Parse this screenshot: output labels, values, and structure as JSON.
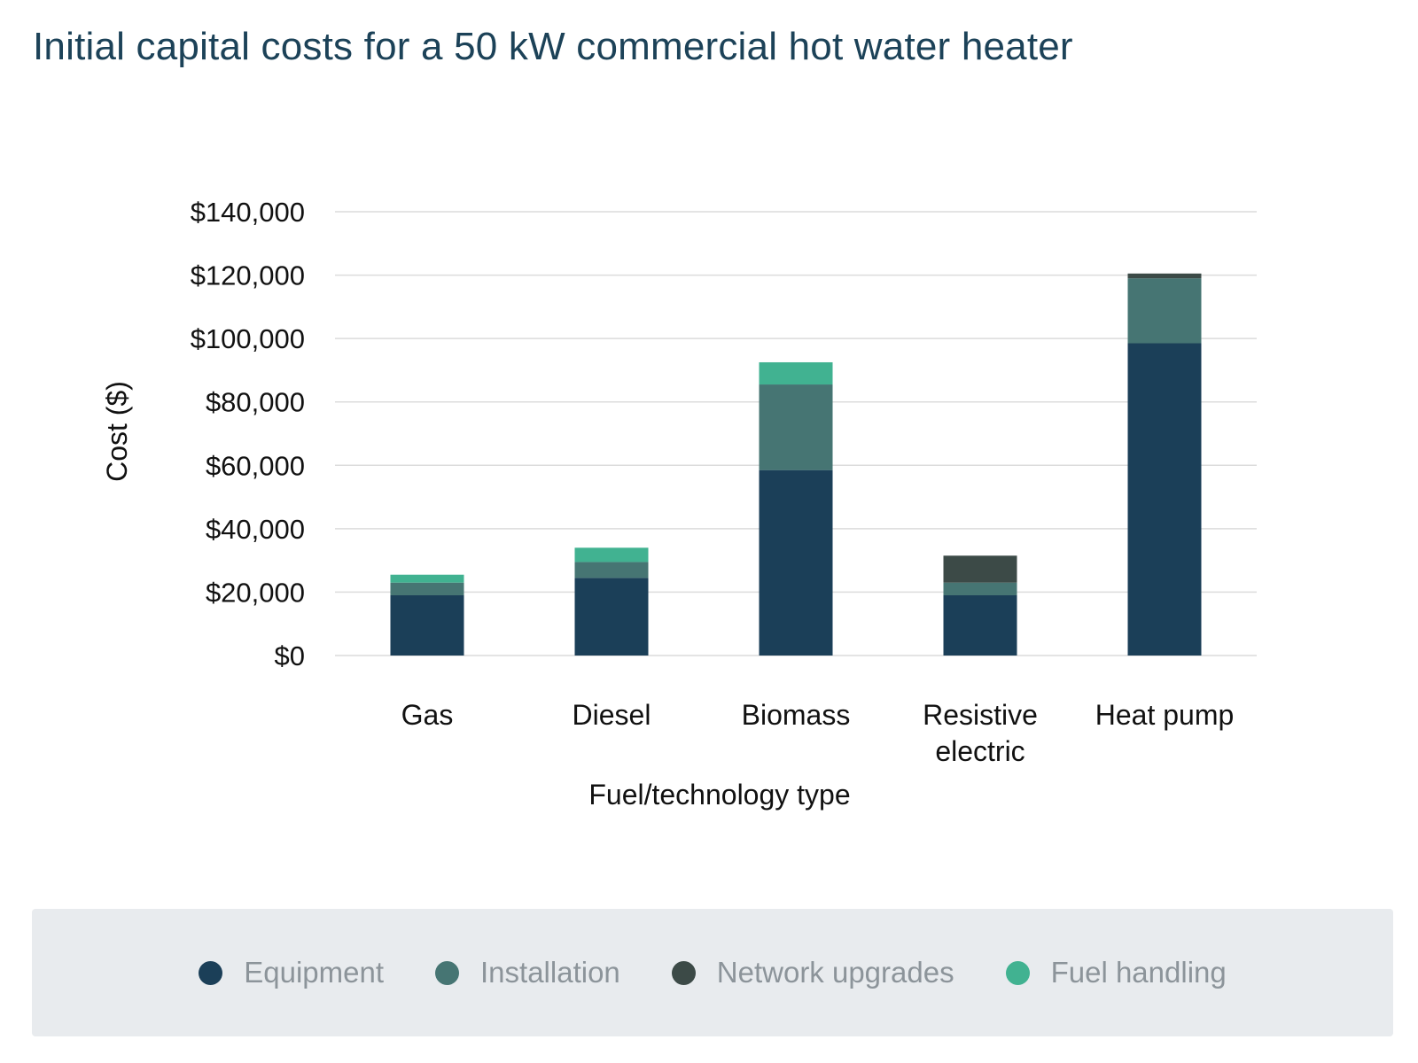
{
  "chart_data": {
    "type": "bar",
    "stacked": true,
    "title": "Initial capital costs for a 50 kW commercial hot water heater",
    "xlabel": "Fuel/technology type",
    "ylabel": "Cost ($)",
    "ylim": [
      0,
      140000
    ],
    "yticks": [
      0,
      20000,
      40000,
      60000,
      80000,
      100000,
      120000,
      140000
    ],
    "ytick_labels": [
      "$0",
      "$20,000",
      "$40,000",
      "$60,000",
      "$80,000",
      "$100,000",
      "$120,000",
      "$140,000"
    ],
    "grid": true,
    "legend_position": "bottom",
    "categories": [
      "Gas",
      "Diesel",
      "Biomass",
      "Resistive electric",
      "Heat pump"
    ],
    "category_lines": [
      [
        "Gas"
      ],
      [
        "Diesel"
      ],
      [
        "Biomass"
      ],
      [
        "Resistive",
        "electric"
      ],
      [
        "Heat pump"
      ]
    ],
    "series": [
      {
        "name": "Equipment",
        "color": "#1b3f58",
        "values": [
          19000,
          24500,
          58500,
          19000,
          98500
        ]
      },
      {
        "name": "Installation",
        "color": "#467573",
        "values": [
          4000,
          5000,
          27000,
          4000,
          20500
        ]
      },
      {
        "name": "Network upgrades",
        "color": "#3c4a47",
        "values": [
          0,
          0,
          0,
          8500,
          1500
        ]
      },
      {
        "name": "Fuel handling",
        "color": "#41b291",
        "values": [
          2500,
          4500,
          7000,
          0,
          0
        ]
      }
    ]
  }
}
